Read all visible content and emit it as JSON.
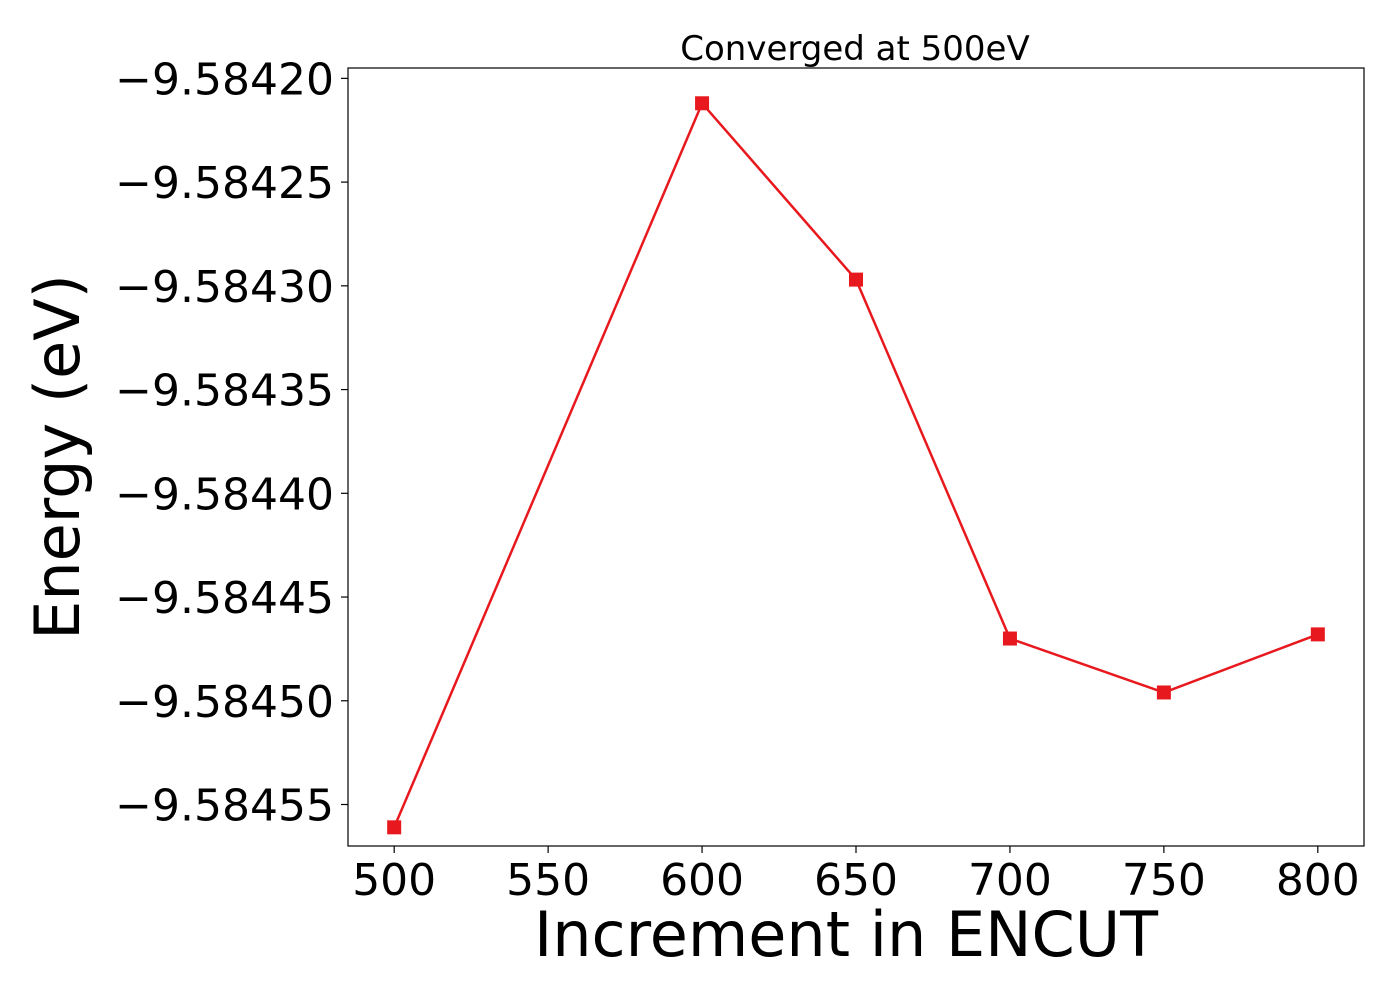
{
  "chart_data": {
    "type": "line",
    "title": "Converged at 500eV",
    "xlabel": "Increment in ENCUT",
    "ylabel": "Energy (eV)",
    "xlim": [
      485,
      815
    ],
    "ylim": [
      -9.58457,
      -9.584195
    ],
    "x_ticks": [
      500,
      550,
      600,
      650,
      700,
      750,
      800
    ],
    "x_tick_labels": [
      "500",
      "550",
      "600",
      "650",
      "700",
      "750",
      "800"
    ],
    "y_ticks": [
      -9.5842,
      -9.58425,
      -9.5843,
      -9.58435,
      -9.5844,
      -9.58445,
      -9.5845,
      -9.58455
    ],
    "y_tick_labels": [
      "−9.58420",
      "−9.58425",
      "−9.58430",
      "−9.58435",
      "−9.58440",
      "−9.58445",
      "−9.58450",
      "−9.58455"
    ],
    "grid": false,
    "series": [
      {
        "x": [
          500,
          600,
          650,
          700,
          750,
          800
        ],
        "y": [
          -9.584561,
          -9.584212,
          -9.584297,
          -9.58447,
          -9.584496,
          -9.584468
        ],
        "color": "#e8191e",
        "marker": "square"
      }
    ]
  }
}
